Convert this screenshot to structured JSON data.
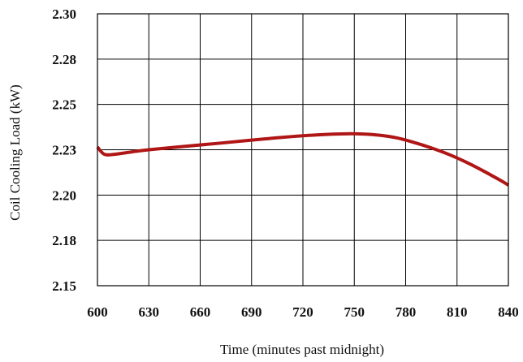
{
  "chart_data": {
    "type": "line",
    "title": "",
    "xlabel": "Time (minutes past midnight)",
    "ylabel": "Coil Cooling Load (kW)",
    "xlim": [
      600,
      840
    ],
    "ylim": [
      2.15,
      2.3
    ],
    "x_ticks": [
      600,
      630,
      660,
      690,
      720,
      750,
      780,
      810,
      840
    ],
    "x_tick_labels": [
      "600",
      "630",
      "660",
      "690",
      "720",
      "750",
      "780",
      "810",
      "840"
    ],
    "y_ticks": [
      2.15,
      2.175,
      2.2,
      2.225,
      2.25,
      2.275,
      2.3
    ],
    "y_tick_labels": [
      "2.15",
      "2.18",
      "2.20",
      "2.23",
      "2.25",
      "2.28",
      "2.30"
    ],
    "grid": true,
    "legend": "none",
    "series": [
      {
        "color": "#b01616",
        "x": [
          600,
          604,
          610,
          620,
          630,
          650,
          670,
          690,
          710,
          730,
          745,
          755,
          765,
          775,
          785,
          795,
          805,
          815,
          825,
          835,
          840
        ],
        "y": [
          2.2265,
          2.2225,
          2.2225,
          2.2238,
          2.225,
          2.2268,
          2.2285,
          2.2303,
          2.232,
          2.2333,
          2.2338,
          2.2337,
          2.233,
          2.2315,
          2.229,
          2.226,
          2.2225,
          2.2183,
          2.2135,
          2.2083,
          2.2055
        ]
      }
    ]
  }
}
